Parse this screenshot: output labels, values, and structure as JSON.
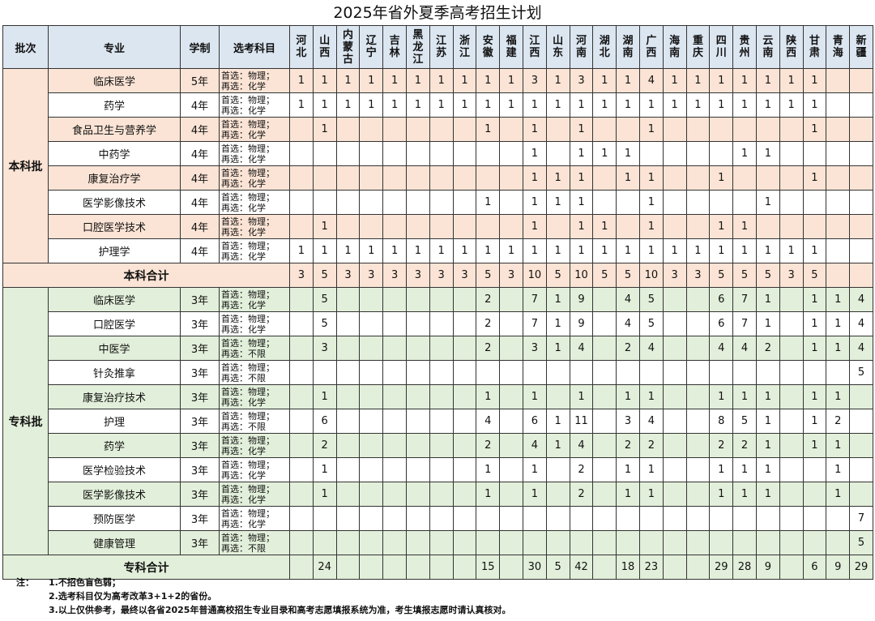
{
  "title": "2025年省外夏季高考招生计划",
  "headers": {
    "batch": "批次",
    "major": "专业",
    "years": "学制",
    "subjects": "选考科目"
  },
  "provinces": [
    "河北",
    "山西",
    "内蒙古",
    "辽宁",
    "吉林",
    "黑龙江",
    "江苏",
    "浙江",
    "安徽",
    "福建",
    "江西",
    "山东",
    "河南",
    "湖北",
    "湖南",
    "广西",
    "海南",
    "重庆",
    "四川",
    "贵州",
    "云南",
    "陕西",
    "甘肃",
    "青海",
    "新疆"
  ],
  "colors": {
    "header": "#dce6f1",
    "undergrad": "#fbe4d5",
    "college": "#e2efda"
  },
  "sections": [
    {
      "batch": "本科批",
      "theme": "or",
      "total_label": "本科合计",
      "rows": [
        {
          "major": "临床医学",
          "years": "5年",
          "subjects": "首选：物理；\n再选：化学",
          "values": [
            "1",
            "1",
            "1",
            "1",
            "1",
            "1",
            "1",
            "1",
            "1",
            "1",
            "3",
            "1",
            "3",
            "1",
            "1",
            "4",
            "1",
            "1",
            "1",
            "1",
            "1",
            "1",
            "1",
            "",
            ""
          ]
        },
        {
          "major": "药学",
          "years": "4年",
          "subjects": "首选：物理；\n再选：化学",
          "values": [
            "1",
            "1",
            "1",
            "1",
            "1",
            "1",
            "1",
            "1",
            "1",
            "1",
            "1",
            "1",
            "1",
            "1",
            "1",
            "1",
            "1",
            "1",
            "1",
            "1",
            "1",
            "1",
            "1",
            "",
            ""
          ]
        },
        {
          "major": "食品卫生与营养学",
          "years": "4年",
          "subjects": "首选：物理；\n再选：化学",
          "values": [
            "",
            "1",
            "",
            "",
            "",
            "",
            "",
            "",
            "1",
            "",
            "1",
            "",
            "1",
            "",
            "",
            "1",
            "",
            "",
            "",
            "",
            "",
            "",
            "1",
            "",
            ""
          ]
        },
        {
          "major": "中药学",
          "years": "4年",
          "subjects": "首选：物理；\n再选：化学",
          "values": [
            "",
            "",
            "",
            "",
            "",
            "",
            "",
            "",
            "",
            "",
            "1",
            "",
            "1",
            "1",
            "1",
            "",
            "",
            "",
            "",
            "1",
            "1",
            "",
            "",
            "",
            ""
          ]
        },
        {
          "major": "康复治疗学",
          "years": "4年",
          "subjects": "首选：物理；\n再选：化学",
          "values": [
            "",
            "",
            "",
            "",
            "",
            "",
            "",
            "",
            "",
            "",
            "1",
            "1",
            "1",
            "",
            "1",
            "1",
            "",
            "",
            "1",
            "",
            "",
            "",
            "1",
            "",
            ""
          ]
        },
        {
          "major": "医学影像技术",
          "years": "4年",
          "subjects": "首选：物理；\n再选：化学",
          "values": [
            "",
            "",
            "",
            "",
            "",
            "",
            "",
            "",
            "1",
            "",
            "1",
            "1",
            "1",
            "",
            "",
            "1",
            "",
            "",
            "",
            "",
            "1",
            "",
            "",
            "",
            ""
          ]
        },
        {
          "major": "口腔医学技术",
          "years": "4年",
          "subjects": "首选：物理；\n再选：化学",
          "values": [
            "",
            "1",
            "",
            "",
            "",
            "",
            "",
            "",
            "",
            "",
            "1",
            "",
            "1",
            "1",
            "",
            "1",
            "",
            "",
            "1",
            "1",
            "",
            "",
            "",
            "",
            ""
          ]
        },
        {
          "major": "护理学",
          "years": "4年",
          "subjects": "首选：物理；\n再选：化学",
          "values": [
            "1",
            "1",
            "1",
            "1",
            "1",
            "1",
            "1",
            "1",
            "1",
            "1",
            "1",
            "1",
            "1",
            "1",
            "1",
            "1",
            "1",
            "1",
            "1",
            "1",
            "1",
            "1",
            "1",
            "",
            ""
          ]
        }
      ],
      "totals": [
        "3",
        "5",
        "3",
        "3",
        "3",
        "3",
        "3",
        "3",
        "5",
        "3",
        "10",
        "5",
        "10",
        "5",
        "5",
        "10",
        "3",
        "3",
        "5",
        "5",
        "5",
        "3",
        "5",
        "",
        ""
      ]
    },
    {
      "batch": "专科批",
      "theme": "gr",
      "total_label": "专科合计",
      "rows": [
        {
          "major": "临床医学",
          "years": "3年",
          "subjects": "首选：物理；\n再选：化学",
          "values": [
            "",
            "5",
            "",
            "",
            "",
            "",
            "",
            "",
            "2",
            "",
            "7",
            "1",
            "9",
            "",
            "4",
            "5",
            "",
            "",
            "6",
            "7",
            "1",
            "",
            "1",
            "1",
            "4"
          ]
        },
        {
          "major": "口腔医学",
          "years": "3年",
          "subjects": "首选：物理；\n再选：化学",
          "values": [
            "",
            "5",
            "",
            "",
            "",
            "",
            "",
            "",
            "2",
            "",
            "7",
            "1",
            "9",
            "",
            "4",
            "5",
            "",
            "",
            "6",
            "7",
            "1",
            "",
            "1",
            "1",
            "4"
          ]
        },
        {
          "major": "中医学",
          "years": "3年",
          "subjects": "首选：物理；\n再选：不限",
          "values": [
            "",
            "3",
            "",
            "",
            "",
            "",
            "",
            "",
            "2",
            "",
            "3",
            "1",
            "4",
            "",
            "2",
            "4",
            "",
            "",
            "4",
            "4",
            "2",
            "",
            "1",
            "1",
            "4"
          ]
        },
        {
          "major": "针灸推拿",
          "years": "3年",
          "subjects": "首选：物理；\n再选：不限",
          "values": [
            "",
            "",
            "",
            "",
            "",
            "",
            "",
            "",
            "",
            "",
            "",
            "",
            "",
            "",
            "",
            "",
            "",
            "",
            "",
            "",
            "",
            "",
            "",
            "",
            "5"
          ]
        },
        {
          "major": "康复治疗技术",
          "years": "3年",
          "subjects": "首选：物理；\n再选：化学",
          "values": [
            "",
            "1",
            "",
            "",
            "",
            "",
            "",
            "",
            "1",
            "",
            "1",
            "",
            "1",
            "",
            "1",
            "1",
            "",
            "",
            "1",
            "1",
            "1",
            "",
            "1",
            "1",
            ""
          ]
        },
        {
          "major": "护理",
          "years": "3年",
          "subjects": "首选：物理；\n再选：不限",
          "values": [
            "",
            "6",
            "",
            "",
            "",
            "",
            "",
            "",
            "4",
            "",
            "6",
            "1",
            "11",
            "",
            "3",
            "4",
            "",
            "",
            "8",
            "5",
            "1",
            "",
            "1",
            "2",
            ""
          ]
        },
        {
          "major": "药学",
          "years": "3年",
          "subjects": "首选：物理；\n再选：化学",
          "values": [
            "",
            "2",
            "",
            "",
            "",
            "",
            "",
            "",
            "2",
            "",
            "4",
            "1",
            "4",
            "",
            "2",
            "2",
            "",
            "",
            "2",
            "2",
            "1",
            "",
            "1",
            "1",
            ""
          ]
        },
        {
          "major": "医学检验技术",
          "years": "3年",
          "subjects": "首选：物理；\n再选：化学",
          "values": [
            "",
            "1",
            "",
            "",
            "",
            "",
            "",
            "",
            "1",
            "",
            "1",
            "",
            "2",
            "",
            "1",
            "1",
            "",
            "",
            "1",
            "1",
            "1",
            "",
            "",
            "1",
            ""
          ]
        },
        {
          "major": "医学影像技术",
          "years": "3年",
          "subjects": "首选：物理；\n再选：化学",
          "values": [
            "",
            "1",
            "",
            "",
            "",
            "",
            "",
            "",
            "1",
            "",
            "1",
            "",
            "2",
            "",
            "1",
            "1",
            "",
            "",
            "1",
            "1",
            "1",
            "",
            "",
            "1",
            ""
          ]
        },
        {
          "major": "预防医学",
          "years": "3年",
          "subjects": "首选：物理；\n再选：化学",
          "values": [
            "",
            "",
            "",
            "",
            "",
            "",
            "",
            "",
            "",
            "",
            "",
            "",
            "",
            "",
            "",
            "",
            "",
            "",
            "",
            "",
            "",
            "",
            "",
            "",
            "7"
          ]
        },
        {
          "major": "健康管理",
          "years": "3年",
          "subjects": "首选：物理；\n再选：不限",
          "values": [
            "",
            "",
            "",
            "",
            "",
            "",
            "",
            "",
            "",
            "",
            "",
            "",
            "",
            "",
            "",
            "",
            "",
            "",
            "",
            "",
            "",
            "",
            "",
            "",
            "5"
          ]
        }
      ],
      "totals": [
        "",
        "24",
        "",
        "",
        "",
        "",
        "",
        "",
        "15",
        "",
        "30",
        "5",
        "42",
        "",
        "18",
        "23",
        "",
        "",
        "29",
        "28",
        "9",
        "",
        "6",
        "9",
        "29"
      ]
    }
  ],
  "notes": {
    "label": "注：",
    "items": [
      "1.不招色盲色弱；",
      "2.选考科目仅为高考改革3+1+2的省份。",
      "3.以上仅供参考，最终以各省2025年普通高校招生专业目录和高考志愿填报系统为准，考生填报志愿时请认真核对。"
    ]
  }
}
